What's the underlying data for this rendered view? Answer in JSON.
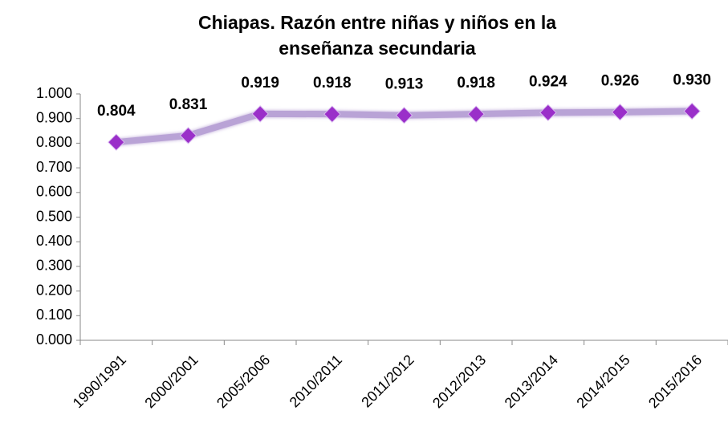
{
  "chart_data": {
    "type": "line",
    "title": "Chiapas. Razón entre niñas y niños en la enseñanza secundaria",
    "categories": [
      "1990/1991",
      "2000/2001",
      "2005/2006",
      "2010/2011",
      "2011/2012",
      "2012/2013",
      "2013/2014",
      "2014/2015",
      "2015/2016"
    ],
    "series": [
      {
        "name": "Chiapas",
        "color": "#b9a3d6",
        "marker_color": "#9a2fc9",
        "values": [
          0.804,
          0.831,
          0.919,
          0.918,
          0.913,
          0.918,
          0.924,
          0.926,
          0.93
        ],
        "value_labels": [
          "0.804",
          "0.831",
          "0.919",
          "0.918",
          "0.913",
          "0.918",
          "0.924",
          "0.926",
          "0.930"
        ]
      }
    ],
    "ylim": [
      0,
      1
    ],
    "yticks": [
      {
        "value": 0,
        "label": "0.000"
      },
      {
        "value": 0.1,
        "label": "0.100"
      },
      {
        "value": 0.2,
        "label": "0.200"
      },
      {
        "value": 0.3,
        "label": "0.300"
      },
      {
        "value": 0.4,
        "label": "0.400"
      },
      {
        "value": 0.5,
        "label": "0.500"
      },
      {
        "value": 0.6,
        "label": "0.600"
      },
      {
        "value": 0.7,
        "label": "0.700"
      },
      {
        "value": 0.8,
        "label": "0.800"
      },
      {
        "value": 0.9,
        "label": "0.900"
      },
      {
        "value": 1,
        "label": "1.000"
      }
    ],
    "grid": false
  }
}
